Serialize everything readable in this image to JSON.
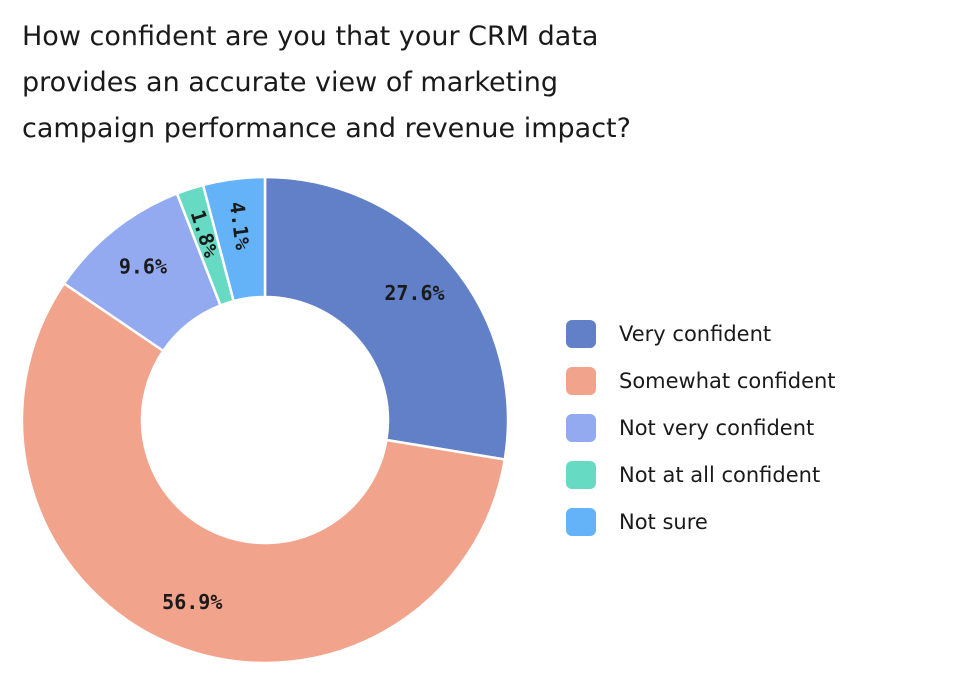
{
  "chart_data": {
    "type": "pie",
    "variant": "donut",
    "title_lines": [
      "How confident are you that your CRM data",
      "provides an accurate view of marketing",
      "campaign performance and revenue impact?"
    ],
    "categories": [
      "Very confident",
      "Somewhat confident",
      "Not very confident",
      "Not at all confident",
      "Not sure"
    ],
    "values": [
      27.6,
      56.9,
      9.6,
      1.8,
      4.1
    ],
    "value_labels": [
      "27.6%",
      "56.9%",
      "9.6%",
      "1.8%",
      "4.1%"
    ],
    "colors": [
      "#6180c8",
      "#f2a38c",
      "#94aaf0",
      "#67dac3",
      "#64b2f7"
    ],
    "legend_position": "right"
  }
}
